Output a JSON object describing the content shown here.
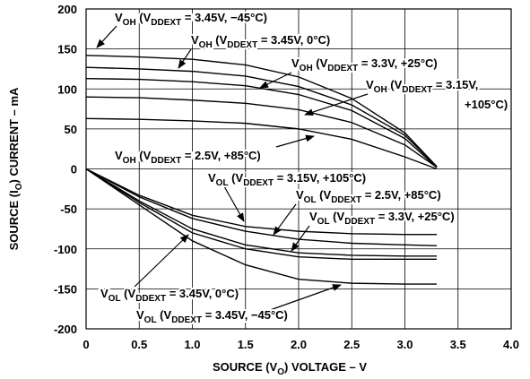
{
  "chart_data": {
    "type": "line",
    "xlabel": [
      "SOURCE (V",
      "O",
      ") VOLTAGE – V"
    ],
    "ylabel": [
      "SOURCE (I",
      "O",
      ") CURRENT – mA"
    ],
    "x": [
      0,
      0.5,
      1,
      1.5,
      2,
      2.5,
      3,
      3.3
    ],
    "series": [
      {
        "color": "#000000",
        "values": [
          142,
          140,
          137,
          130,
          115,
          88,
          45,
          3
        ]
      },
      {
        "color": "#000000",
        "values": [
          127,
          125,
          122,
          116,
          103,
          80,
          42,
          3
        ]
      },
      {
        "color": "#000000",
        "values": [
          113,
          112,
          109,
          104,
          93,
          73,
          38,
          2
        ]
      },
      {
        "color": "#000000",
        "values": [
          90,
          89,
          86,
          82,
          74,
          58,
          30,
          2
        ]
      },
      {
        "color": "#000000",
        "values": [
          63,
          62,
          60,
          57,
          50,
          37,
          15,
          0
        ]
      },
      {
        "color": "#000000",
        "values": [
          0,
          -33,
          -58,
          -72,
          -78,
          -81,
          -82,
          -82
        ]
      },
      {
        "color": "#000000",
        "values": [
          0,
          -35,
          -62,
          -78,
          -88,
          -93,
          -95,
          -96
        ]
      },
      {
        "color": "#000000",
        "values": [
          0,
          -40,
          -75,
          -95,
          -105,
          -108,
          -109,
          -109
        ]
      },
      {
        "color": "#000000",
        "values": [
          0,
          -42,
          -80,
          -100,
          -110,
          -113,
          -113,
          -113
        ]
      },
      {
        "color": "#000000",
        "values": [
          0,
          -45,
          -90,
          -120,
          -138,
          -143,
          -144,
          -144
        ]
      }
    ],
    "annotations": [
      {
        "lines": [
          [
            "V",
            "OH",
            " (V",
            "DDEXT",
            " = 3.45V, −45°C)"
          ]
        ]
      },
      {
        "lines": [
          [
            "V",
            "OH",
            " (V",
            "DDEXT",
            " = 3.45V, 0°C)"
          ]
        ]
      },
      {
        "lines": [
          [
            "V",
            "OH",
            " (V",
            "DDEXT",
            " = 3.3V, +25°C)"
          ]
        ]
      },
      {
        "lines": [
          [
            "V",
            "OH",
            " (V",
            "DDEXT",
            " = 3.15V,"
          ],
          [
            "+105°C)"
          ]
        ]
      },
      {
        "lines": [
          [
            "V",
            "OH",
            " (V",
            "DDEXT",
            " = 2.5V, +85°C)"
          ]
        ]
      },
      {
        "lines": [
          [
            "V",
            "OL",
            " (V",
            "DDEXT",
            " = 3.15V, +105°C)"
          ]
        ]
      },
      {
        "lines": [
          [
            "V",
            "OL",
            " (V",
            "DDEXT",
            " = 2.5V, +85°C)"
          ]
        ]
      },
      {
        "lines": [
          [
            "V",
            "OL",
            " (V",
            "DDEXT",
            " = 3.3V, +25°C)"
          ]
        ]
      },
      {
        "lines": [
          [
            "V",
            "OL",
            " (V",
            "DDEXT",
            " = 3.45V, 0°C)"
          ]
        ]
      },
      {
        "lines": [
          [
            "V",
            "OL",
            " (V",
            "DDEXT",
            " = 3.45V, −45°C)"
          ]
        ]
      }
    ],
    "xlim": [
      0,
      4
    ],
    "xticks": [
      0,
      0.5,
      {
        "value": 1,
        "label": "1.0"
      },
      1.5,
      {
        "value": 2,
        "label": "2.0"
      },
      2.5,
      {
        "value": 3,
        "label": "3.0"
      },
      3.5,
      {
        "value": 4,
        "label": "4.0"
      }
    ],
    "ylim": [
      -200,
      200
    ],
    "yticks": [
      -200,
      -150,
      -100,
      -50,
      0,
      50,
      100,
      150,
      200
    ],
    "grid": true
  }
}
